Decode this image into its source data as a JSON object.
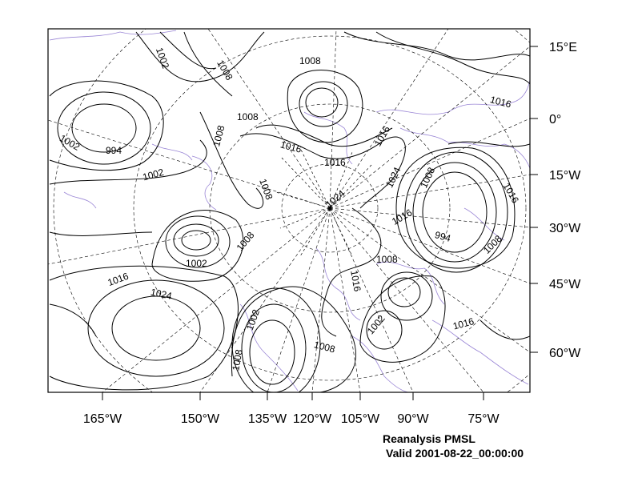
{
  "caption": {
    "title": "Reanalysis PMSL",
    "valid": "Valid 2001-08-22_00:00:00"
  },
  "bottom_axis_labels": [
    "165°W",
    "150°W",
    "135°W",
    "120°W",
    "105°W",
    "90°W",
    "75°W"
  ],
  "right_axis_labels": [
    "15°E",
    "0°",
    "15°W",
    "30°W",
    "45°W",
    "60°W"
  ],
  "contour_labels": [
    "1002",
    "1008",
    "1008",
    "1016",
    "1008",
    "1016",
    "1016",
    "1002",
    "994",
    "1002",
    "1008",
    "1016",
    "1024",
    "1024",
    "1008",
    "1016",
    "1008",
    "1016",
    "994",
    "1002",
    "1008",
    "1008",
    "1016",
    "1024",
    "1016",
    "1002",
    "1016",
    "1008",
    "1002",
    "1008"
  ],
  "colors": {
    "contour": "#000000",
    "coastline": "#9b87d6",
    "grid": "#000000",
    "background": "#ffffff"
  }
}
